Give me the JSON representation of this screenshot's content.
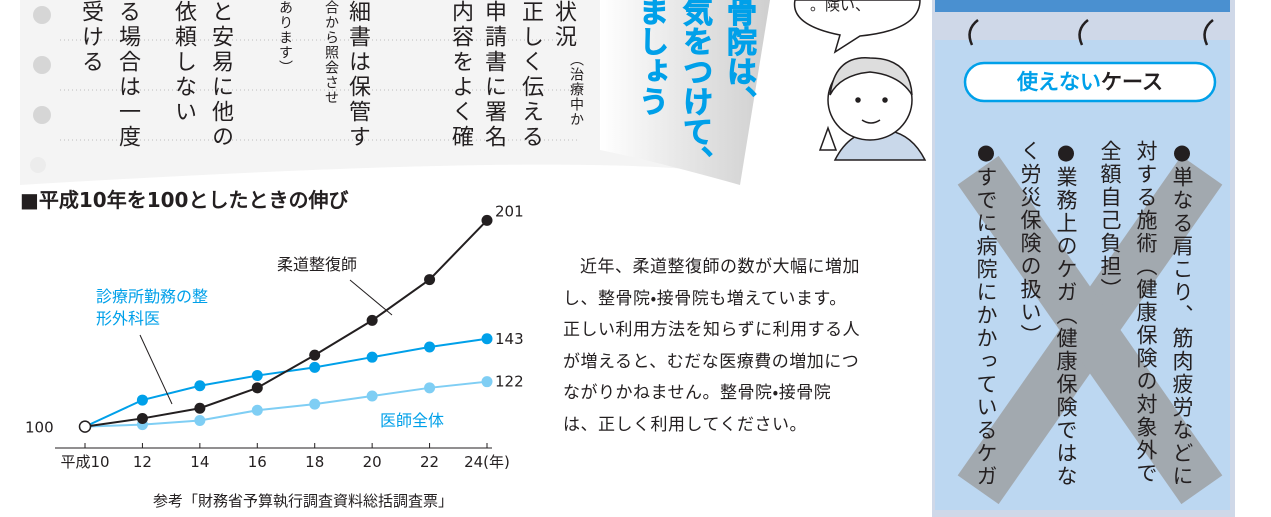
{
  "notes": {
    "columns": [
      "状況",
      "（治療中か",
      "正しく伝える",
      "申請書に署名",
      "内容をよく確",
      "細書は保管す",
      "合から照会させ",
      "あります）",
      "と安易に他の",
      "依頼しない",
      "る場合は一度",
      "受ける"
    ]
  },
  "heading": {
    "lines": [
      "骨院は、",
      "気をつけて、",
      "ましょう"
    ]
  },
  "bubble": "。険い、",
  "chart_data": {
    "type": "line",
    "title": "■平成10年を100としたときの伸び",
    "x": [
      10,
      12,
      14,
      16,
      18,
      20,
      22,
      24
    ],
    "xlim": [
      10,
      24
    ],
    "xticks": [
      {
        "value": 10,
        "label": "平成10"
      },
      12,
      14,
      16,
      18,
      20,
      22,
      {
        "value": 24,
        "label": "24(年)"
      }
    ],
    "ylim": [
      91,
      209
    ],
    "series": [
      {
        "name": "診療所勤務の整形外科医",
        "color": "#00a0e9",
        "values": [
          100,
          113,
          120,
          125,
          129,
          134,
          139,
          143
        ]
      },
      {
        "name": "医師全体",
        "color": "#7fcef4",
        "values": [
          100,
          101,
          103,
          108,
          111,
          115,
          119,
          122
        ]
      },
      {
        "name": "柔道整復師",
        "color": "#231f20",
        "values": [
          100,
          104,
          109,
          119,
          135,
          152,
          172,
          201
        ]
      }
    ],
    "source": "参考「財務省予算執行調査資料総括調査票」"
  },
  "paragraph": "近年、柔道整復師の数が大幅に増加し、整骨院・接骨院も増えています。正しい利用方法を知らずに利用する人が増えると、むだな医療費の増加につながりかねません。整骨院・接骨院は、正しく利用してください。",
  "panel": {
    "title_emphasis": "使えない",
    "title_rest": "ケース",
    "items": [
      "●単なる肩こり、筋肉疲労などに対する施術（健康保険の対象外で全額自己負担）",
      "●業務上のケガ（健康保険ではなく労災保険の扱い）",
      "●すでに病院にかかっているケガ"
    ]
  }
}
